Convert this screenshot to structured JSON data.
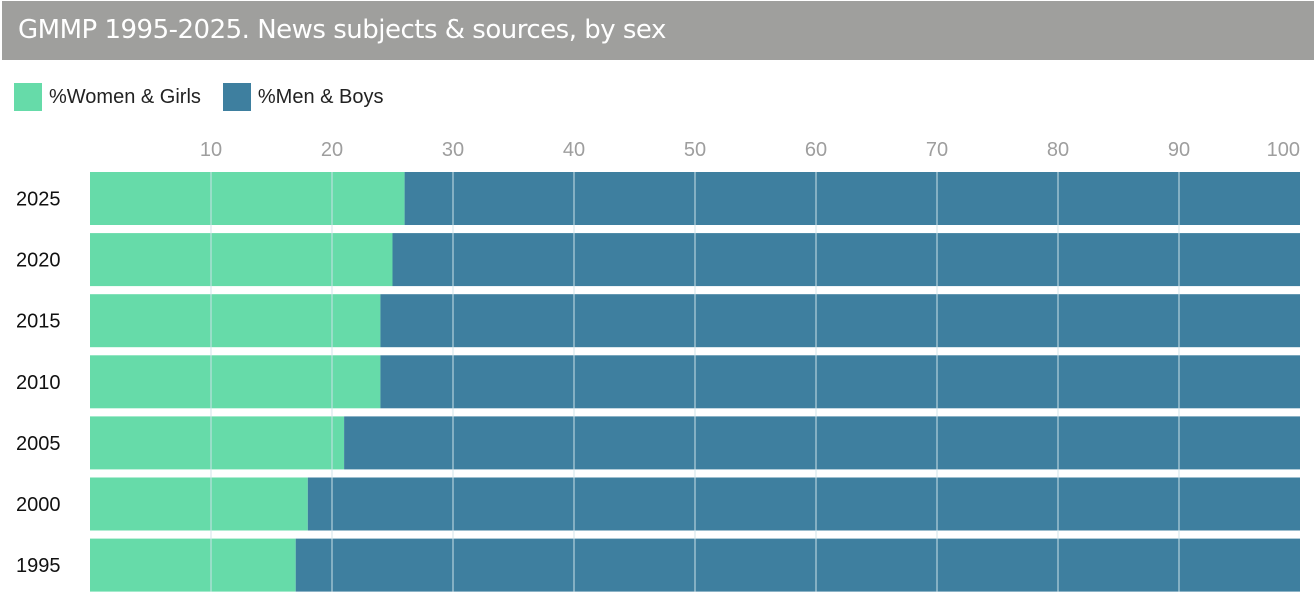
{
  "colors": {
    "title_bg": "#9f9f9d",
    "women": "#66dba9",
    "men": "#3e7f9f",
    "gridline": "#cfe3ea",
    "tick_text": "#9e9e9e"
  },
  "chart_data": {
    "type": "bar",
    "orientation": "horizontal",
    "stacked": true,
    "title": "GMMP 1995-2025. News subjects & sources, by sex",
    "categories": [
      "2025",
      "2020",
      "2015",
      "2010",
      "2005",
      "2000",
      "1995"
    ],
    "series": [
      {
        "name": "%Women & Girls",
        "values": [
          26,
          25,
          24,
          24,
          21,
          18,
          17
        ]
      },
      {
        "name": "%Men & Boys",
        "values": [
          74,
          75,
          76,
          76,
          79,
          82,
          83
        ]
      }
    ],
    "xlim": [
      0,
      100
    ],
    "xticks": [
      "10",
      "20",
      "30",
      "40",
      "50",
      "60",
      "70",
      "80",
      "90",
      "100"
    ],
    "x_axis_position": "top",
    "legend_position": "top-left",
    "grid": true
  }
}
